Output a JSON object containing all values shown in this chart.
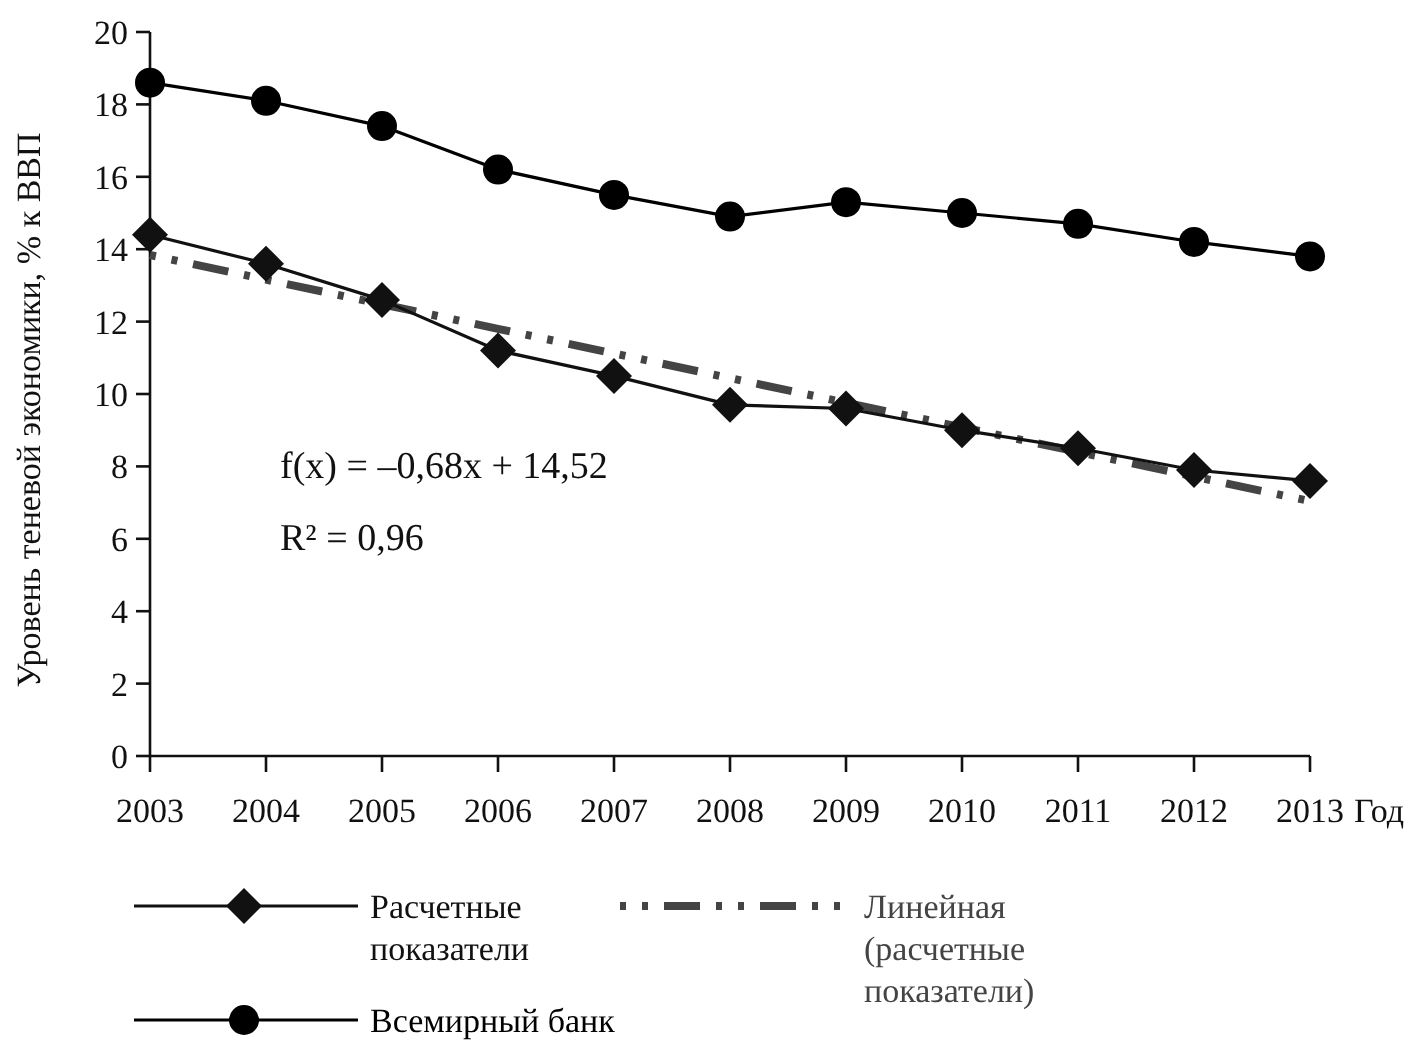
{
  "chart_data": {
    "type": "line",
    "xlabel": "Год",
    "ylabel": "Уровень теневой экономики, % к ВВП",
    "categories": [
      "2003",
      "2004",
      "2005",
      "2006",
      "2007",
      "2008",
      "2009",
      "2010",
      "2011",
      "2012",
      "2013"
    ],
    "ylim": [
      0,
      20
    ],
    "yticks": [
      0,
      2,
      4,
      6,
      8,
      10,
      12,
      14,
      16,
      18,
      20
    ],
    "grid": false,
    "legend": "bottom",
    "series": [
      {
        "name": "Расчетные показатели",
        "color": "#111111",
        "marker": "diamond",
        "line_style": "solid",
        "values": [
          14.4,
          13.6,
          12.6,
          11.2,
          10.5,
          9.7,
          9.6,
          9.0,
          8.5,
          7.9,
          7.6
        ]
      },
      {
        "name": "Линейная (расчетные показатели)",
        "color": "#444444",
        "marker": "none",
        "line_style": "dashed",
        "values": [
          13.84,
          13.16,
          12.48,
          11.8,
          11.12,
          10.44,
          9.76,
          9.08,
          8.4,
          7.72,
          7.04
        ]
      },
      {
        "name": "Всемирный банк",
        "color": "#000000",
        "marker": "circle",
        "line_style": "solid",
        "values": [
          18.6,
          18.1,
          17.4,
          16.2,
          15.5,
          14.9,
          15.3,
          15.0,
          14.7,
          14.2,
          13.8
        ]
      }
    ],
    "annotations": [
      "f(x) = –0,68x + 14,52",
      "R² = 0,96"
    ]
  }
}
